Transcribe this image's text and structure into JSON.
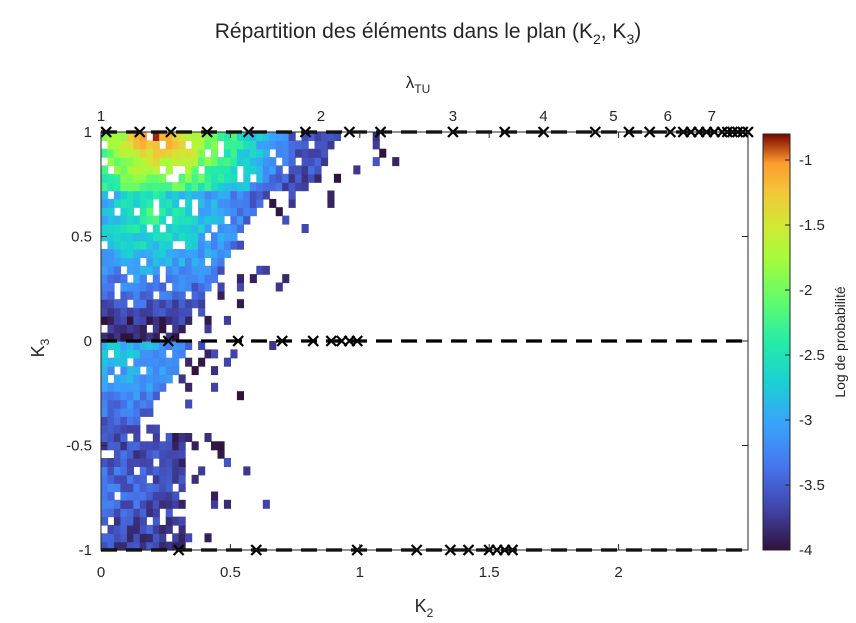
{
  "chart_data": {
    "type": "heatmap",
    "title_main": "Répartition des éléments dans le plan (K",
    "title_sub1": "2",
    "title_mid": ", K",
    "title_sub2": "3",
    "title_end": ")",
    "xlabel_main": "K",
    "xlabel_sub": "2",
    "ylabel_main": "K",
    "ylabel_sub": "3",
    "top_axis_label_main": "λ",
    "top_axis_label_sub": "TU",
    "colorbar_label": "Log de probabilité",
    "xlim": [
      0,
      2.5
    ],
    "ylim": [
      -1,
      1
    ],
    "clim": [
      -4,
      -0.8
    ],
    "colormap": "turbo",
    "x_ticks": [
      {
        "value": 0,
        "label": "0"
      },
      {
        "value": 0.5,
        "label": "0.5"
      },
      {
        "value": 1,
        "label": "1"
      },
      {
        "value": 1.5,
        "label": "1.5"
      },
      {
        "value": 2,
        "label": "2"
      }
    ],
    "y_ticks": [
      {
        "value": -1,
        "label": "-1"
      },
      {
        "value": -0.5,
        "label": "-0.5"
      },
      {
        "value": 0,
        "label": "0"
      },
      {
        "value": 0.5,
        "label": "0.5"
      },
      {
        "value": 1,
        "label": "1"
      }
    ],
    "top_ticks": [
      {
        "value": 0,
        "label": "1"
      },
      {
        "value": 0.85,
        "label": "2"
      },
      {
        "value": 1.36,
        "label": "3"
      },
      {
        "value": 1.71,
        "label": "4"
      },
      {
        "value": 1.98,
        "label": "5"
      },
      {
        "value": 2.19,
        "label": "6"
      },
      {
        "value": 2.36,
        "label": "7"
      }
    ],
    "colorbar_ticks": [
      {
        "value": -1,
        "label": "-1"
      },
      {
        "value": -1.5,
        "label": "-1.5"
      },
      {
        "value": -2,
        "label": "-2"
      },
      {
        "value": -2.5,
        "label": "-2.5"
      },
      {
        "value": -3,
        "label": "-3"
      },
      {
        "value": -3.5,
        "label": "-3.5"
      },
      {
        "value": -4,
        "label": "-4"
      }
    ],
    "bin_size": {
      "dx": 0.025,
      "dy": 0.04
    },
    "heatmap_density_bands": [
      {
        "y_min": 0.72,
        "y_max": 1.0,
        "x_min": 0.0,
        "x_max": 0.88,
        "peak_x": 0.22,
        "peak_y": 0.97,
        "peak_value": -1.0,
        "edge_value": -3.6
      },
      {
        "y_min": 0.02,
        "y_max": 0.72,
        "x_min": 0.0,
        "x_max": 0.62,
        "peak_x": 0.2,
        "peak_y": 0.6,
        "peak_value": -2.3,
        "edge_value": -3.9
      },
      {
        "y_min": -0.45,
        "y_max": 0.02,
        "x_min": 0.0,
        "x_max": 0.4,
        "peak_x": 0.08,
        "peak_y": -0.05,
        "peak_value": -2.8,
        "edge_value": -3.9
      },
      {
        "y_min": -1.0,
        "y_max": -0.45,
        "x_min": 0.0,
        "x_max": 0.32,
        "peak_x": 0.05,
        "peak_y": -0.7,
        "peak_value": -3.4,
        "edge_value": -4.0
      }
    ],
    "series": [
      {
        "y": 1,
        "x": [
          0.02,
          0.15,
          0.27,
          0.41,
          0.57,
          0.79,
          0.96,
          1.08,
          1.36,
          1.56,
          1.71,
          1.91,
          2.04,
          2.12,
          2.2,
          2.25,
          2.28,
          2.31,
          2.34,
          2.37,
          2.4,
          2.42,
          2.44,
          2.46,
          2.48,
          2.5
        ]
      },
      {
        "y": 0,
        "x": [
          0.26,
          0.53,
          0.7,
          0.82,
          0.89,
          0.93,
          0.96,
          0.99
        ]
      },
      {
        "y": -1,
        "x": [
          0.3,
          0.6,
          0.99,
          1.22,
          1.35,
          1.42,
          1.5,
          1.53,
          1.56,
          1.59
        ]
      }
    ]
  }
}
